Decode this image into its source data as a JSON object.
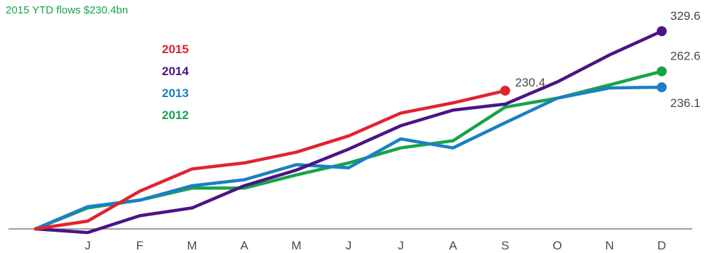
{
  "chart_data": {
    "type": "line",
    "title": "2015 YTD flows $230.4bn",
    "xlabel": "",
    "ylabel": "",
    "x": [
      "",
      "J",
      "F",
      "M",
      "A",
      "M",
      "J",
      "J",
      "A",
      "S",
      "O",
      "N",
      "D"
    ],
    "ylim": [
      0,
      360
    ],
    "grid": false,
    "legend_position": "top-left",
    "colors": {
      "title": "#17a349",
      "axis": "#7f7f7f"
    },
    "series": [
      {
        "name": "2015",
        "color": "#e2232e",
        "values": [
          0,
          13,
          63,
          100,
          110,
          128,
          155,
          193,
          210,
          230.4,
          null,
          null,
          null
        ],
        "end_label": "230.4"
      },
      {
        "name": "2014",
        "color": "#4a1486",
        "values": [
          0,
          -6,
          22,
          35,
          72,
          98,
          133,
          172,
          198,
          208,
          245,
          290,
          329.6
        ],
        "end_label": "329.6"
      },
      {
        "name": "2013",
        "color": "#1b80c4",
        "values": [
          0,
          37,
          48,
          72,
          82,
          107,
          102,
          150,
          135,
          177,
          218,
          235,
          236.1
        ],
        "end_label": "236.1"
      },
      {
        "name": "2012",
        "color": "#17a349",
        "values": [
          0,
          35,
          48,
          68,
          68,
          90,
          110,
          135,
          147,
          203,
          218,
          240,
          262.6
        ],
        "end_label": "262.6"
      }
    ]
  }
}
